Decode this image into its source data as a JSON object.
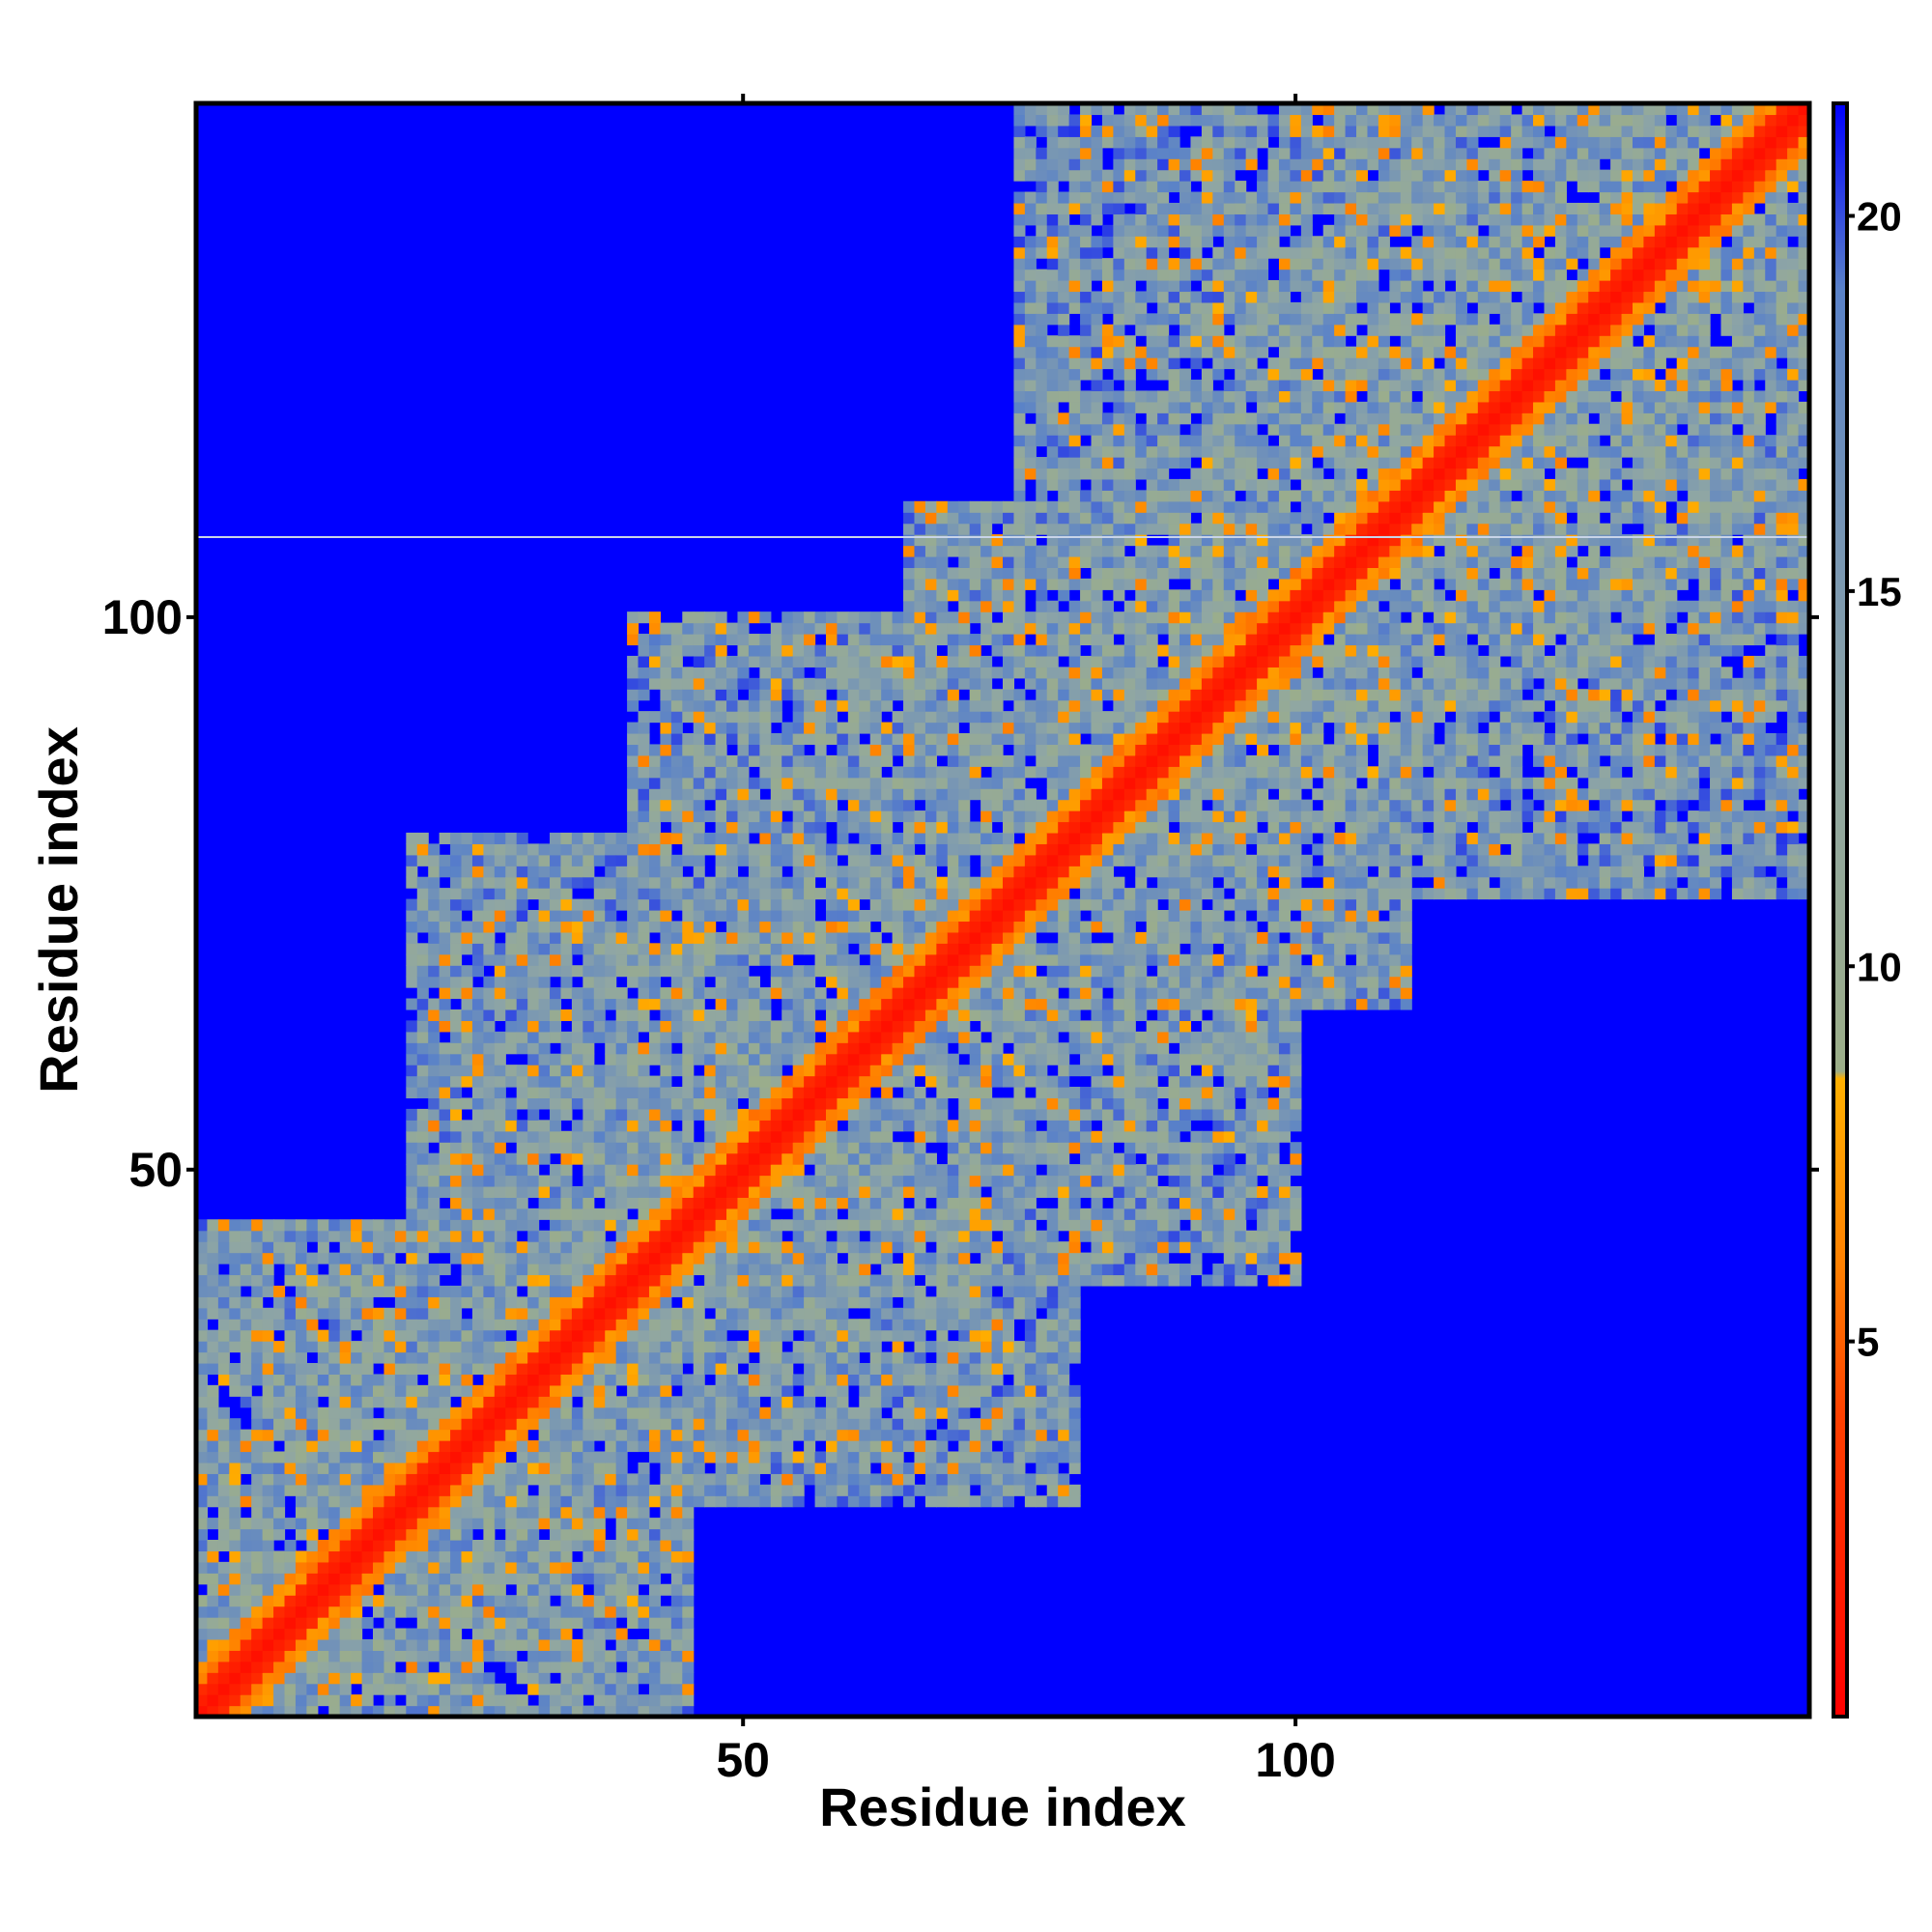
{
  "chart_data": {
    "type": "heatmap",
    "title": "",
    "xlabel": "Residue index",
    "ylabel": "Residue index",
    "n_residues": 146,
    "x_ticks": [
      "50",
      "100"
    ],
    "x_tick_values": [
      50,
      100
    ],
    "y_ticks": [
      "50",
      "100"
    ],
    "y_tick_values": [
      50,
      100
    ],
    "xlim": [
      0.5,
      146.5
    ],
    "ylim": [
      0.5,
      146.5
    ],
    "diagonal_value": 1,
    "background_value": 21,
    "colorbar": {
      "ticks": [
        "5",
        "10",
        "15",
        "20"
      ],
      "tick_values": [
        5,
        10,
        15,
        20
      ],
      "range": [
        0,
        21.5
      ],
      "stops": [
        {
          "value": 0,
          "color": "#ff0000"
        },
        {
          "value": 4,
          "color": "#ff4000"
        },
        {
          "value": 6,
          "color": "#ff8000"
        },
        {
          "value": 8.5,
          "color": "#ffb000"
        },
        {
          "value": 8.6,
          "color": "#9cae88"
        },
        {
          "value": 13,
          "color": "#8fa6a4"
        },
        {
          "value": 19,
          "color": "#5a82c8"
        },
        {
          "value": 21.5,
          "color": "#0000ff"
        }
      ]
    },
    "colors": {
      "background": "#0000ff",
      "near_diagonal": "#ff0000",
      "contact_orange": "#ff8c00",
      "contact_green": "#9cae88",
      "contact_lightblue": "#7f9fd0"
    },
    "contact_regions": [
      {
        "x": [
          1,
          45
        ],
        "y": [
          1,
          45
        ],
        "level": "mixed"
      },
      {
        "x": [
          20,
          80
        ],
        "y": [
          20,
          80
        ],
        "level": "mixed"
      },
      {
        "x": [
          40,
          75
        ],
        "y": [
          55,
          100
        ],
        "level": "mixed"
      },
      {
        "x": [
          65,
          110
        ],
        "y": [
          65,
          110
        ],
        "level": "mixed"
      },
      {
        "x": [
          75,
          110
        ],
        "y": [
          95,
          146
        ],
        "level": "mixed"
      },
      {
        "x": [
          100,
          146
        ],
        "y": [
          100,
          146
        ],
        "level": "mixed"
      }
    ]
  }
}
